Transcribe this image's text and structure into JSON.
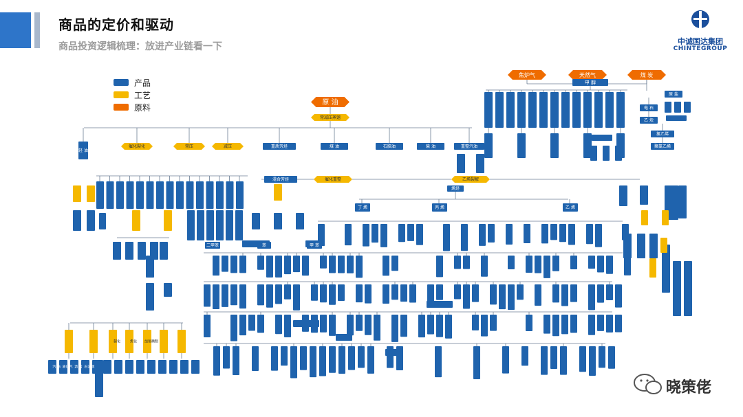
{
  "header": {
    "title": "商品的定价和驱动",
    "subtitle": "商品投资逻辑梳理：放进产业链看一下"
  },
  "logo": {
    "cn": "中诚国达集团",
    "en": "CHINTEGROUP"
  },
  "legend": [
    {
      "label": "产品",
      "color": "#1f63ad"
    },
    {
      "label": "工艺",
      "color": "#f5b800"
    },
    {
      "label": "原料",
      "color": "#ef6c00"
    }
  ],
  "colors": {
    "product": "#1f63ad",
    "process": "#f5b800",
    "material": "#ef6c00",
    "line": "#6b7e95"
  },
  "diagram": {
    "root": "原 油",
    "root_process": "常减压蒸馏",
    "raw_materials_right": [
      "焦炉气",
      "天然气",
      "煤 炭"
    ],
    "right_top_product": "甲 醇",
    "coal_branch": [
      "原 盐",
      "电 石",
      "乙 炔",
      "氯乙烯",
      "聚氯乙烯"
    ],
    "level1_products": [
      "轻 油",
      "重质芳烃",
      "煤 油",
      "石脑油",
      "柴 油",
      "重整汽油"
    ],
    "level1_processes": [
      "催化裂化",
      "常压",
      "减压"
    ],
    "cracking": [
      "催化重整",
      "乙烯裂解"
    ],
    "mid_labels": [
      "混合芳烃",
      "烯烃"
    ],
    "olefins": [
      "丁 烯",
      "丙 烯",
      "乙 烯"
    ],
    "aromatics": [
      "苯",
      "甲 苯",
      "二甲苯"
    ],
    "bottom_processes": [
      "裂化",
      "焦化",
      "加氢精制"
    ],
    "bottom_products": [
      "汽 油",
      "液化气",
      "沥 青",
      "石油焦"
    ]
  },
  "watermark": {
    "text": "晓策佬"
  }
}
